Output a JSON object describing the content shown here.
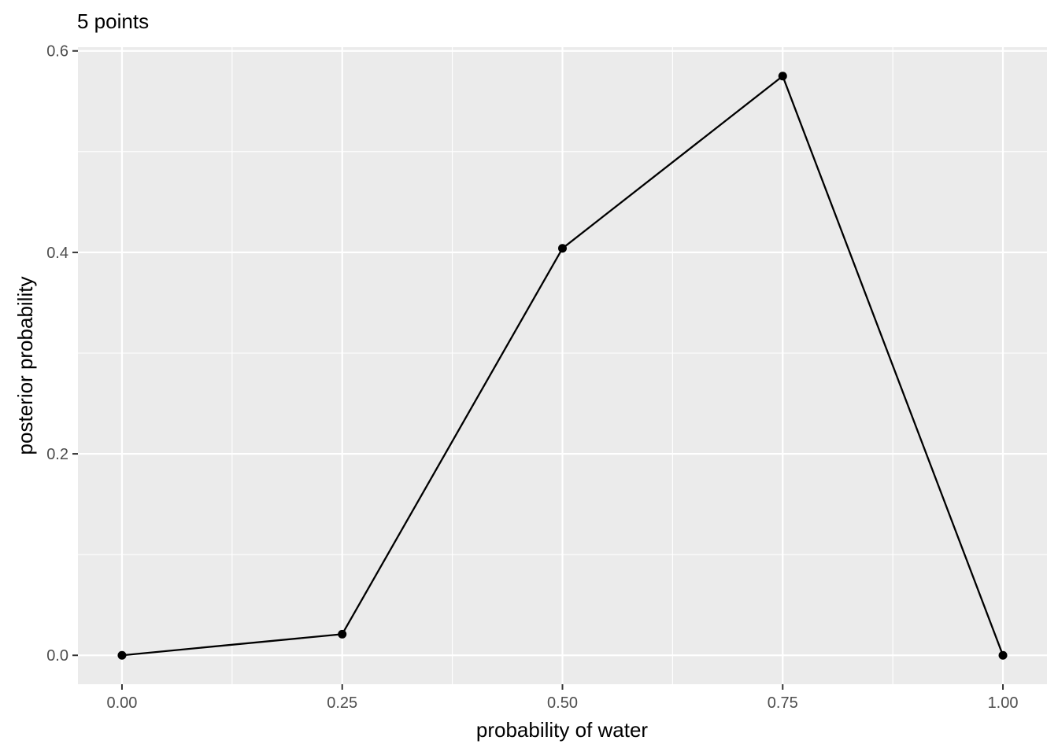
{
  "chart_data": {
    "type": "line",
    "title": "5 points",
    "xlabel": "probability of water",
    "ylabel": "posterior probability",
    "x": [
      0.0,
      0.25,
      0.5,
      0.75,
      1.0
    ],
    "series": [
      {
        "values": [
          0.0,
          0.021,
          0.404,
          0.575,
          0.0
        ]
      }
    ],
    "xlim": [
      -0.05,
      1.05
    ],
    "ylim": [
      -0.0287,
      0.6037
    ],
    "x_ticks": [
      0.0,
      0.25,
      0.5,
      0.75,
      1.0
    ],
    "x_tick_labels": [
      "0.00",
      "0.25",
      "0.50",
      "0.75",
      "1.00"
    ],
    "y_ticks": [
      0.0,
      0.2,
      0.4,
      0.6
    ],
    "y_tick_labels": [
      "0.0",
      "0.2",
      "0.4",
      "0.6"
    ],
    "grid": true,
    "colors": {
      "panel_background": "#ebebeb",
      "grid": "#ffffff",
      "line": "#000000",
      "points": "#000000",
      "tick_text": "#4d4d4d",
      "ticks": "#333333"
    },
    "markers": "filled-circle"
  }
}
